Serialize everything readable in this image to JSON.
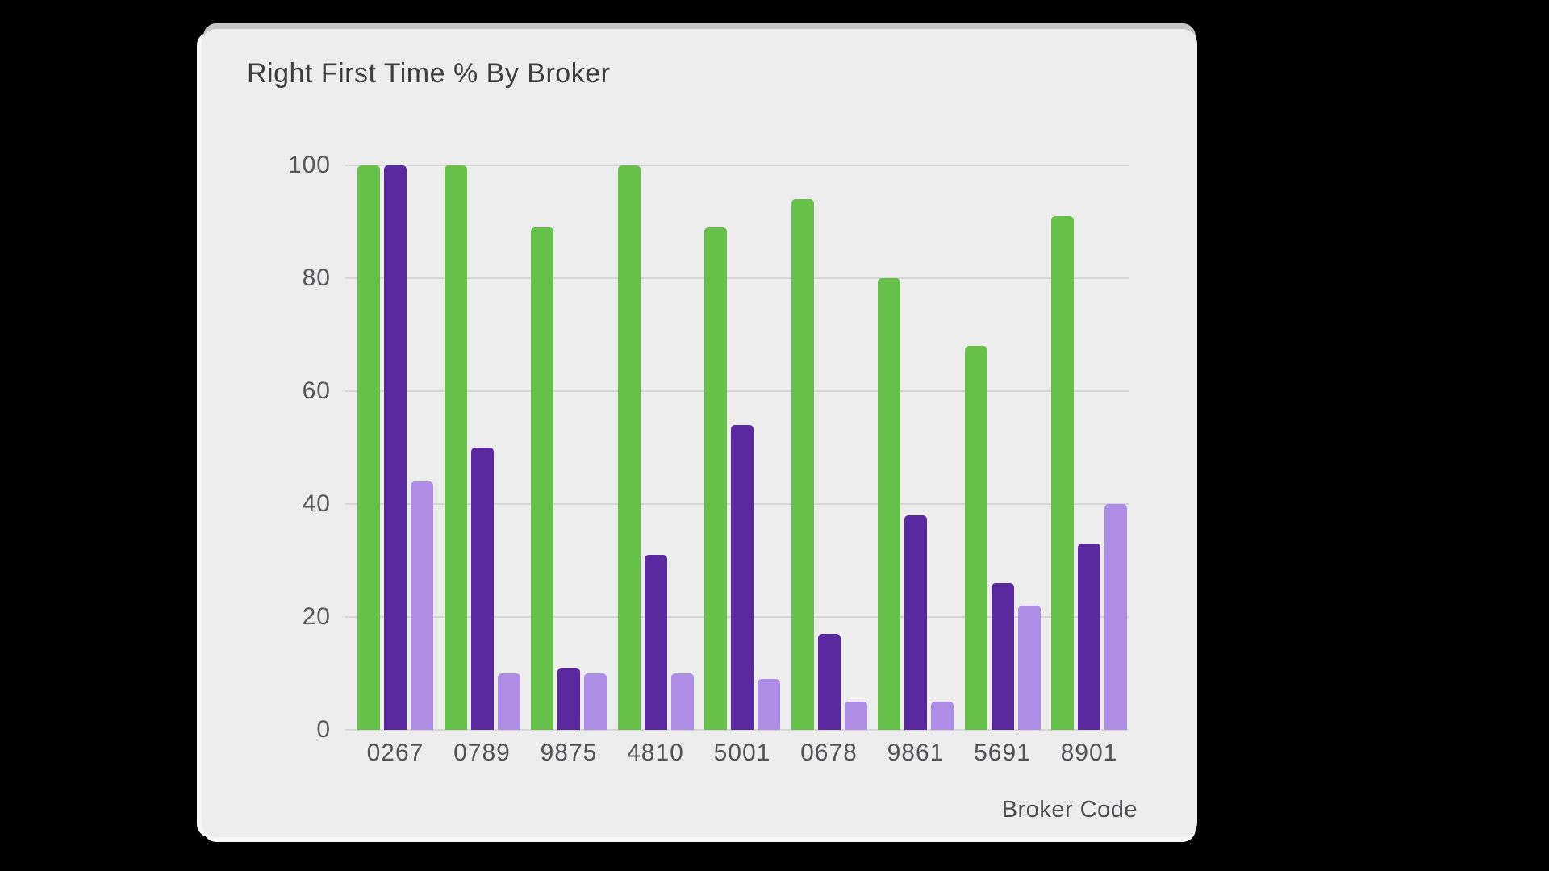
{
  "card": {
    "title": "Right First Time % By Broker",
    "xaxis_title": "Broker Code"
  },
  "colors": {
    "background": "#000000",
    "card_bg": "#eeedee",
    "gridline": "#d7d6d7",
    "title_text": "#3d3d3d",
    "tick_text": "#58585a",
    "series_green": "#67c04a",
    "series_dark_purple": "#5a29a0",
    "series_light_purple": "#ae8de6"
  },
  "chart_data": {
    "type": "bar",
    "title": "Right First Time % By Broker",
    "xlabel": "Broker Code",
    "ylabel": "",
    "categories": [
      "0267",
      "0789",
      "9875",
      "4810",
      "5001",
      "0678",
      "9861",
      "5691",
      "8901"
    ],
    "series": [
      {
        "name": "series-1-green",
        "color": "#67c04a",
        "values": [
          100,
          100,
          89,
          100,
          89,
          94,
          80,
          68,
          91
        ]
      },
      {
        "name": "series-2-dark-purple",
        "color": "#5a29a0",
        "values": [
          100,
          50,
          11,
          31,
          54,
          17,
          38,
          26,
          33
        ]
      },
      {
        "name": "series-3-light-purple",
        "color": "#ae8de6",
        "values": [
          44,
          10,
          10,
          10,
          9,
          5,
          5,
          22,
          40
        ]
      }
    ],
    "y_ticks": [
      0,
      20,
      40,
      60,
      80,
      100
    ],
    "ylim": [
      0,
      100
    ],
    "grid": "horizontal",
    "legend": "none"
  }
}
